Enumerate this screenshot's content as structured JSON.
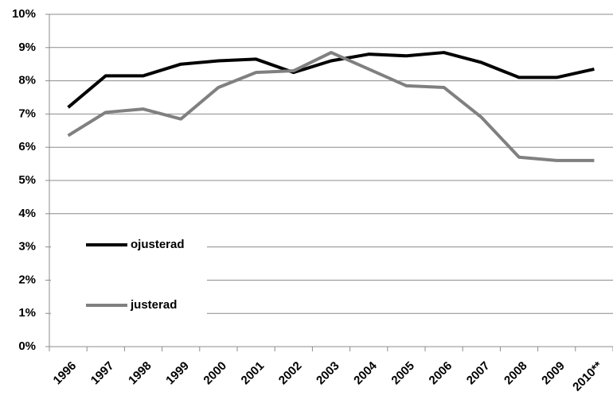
{
  "chart_data": {
    "type": "line",
    "categories": [
      "1996",
      "1997",
      "1998",
      "1999",
      "2000",
      "2001",
      "2002",
      "2003",
      "2004",
      "2005",
      "2006",
      "2007",
      "2008",
      "2009",
      "2010**"
    ],
    "series": [
      {
        "name": "ojusterad",
        "color": "#000000",
        "values": [
          7.2,
          8.15,
          8.15,
          8.5,
          8.6,
          8.65,
          8.25,
          8.6,
          8.8,
          8.75,
          8.85,
          8.55,
          8.1,
          8.1,
          8.35
        ]
      },
      {
        "name": "justerad",
        "color": "#808080",
        "values": [
          6.35,
          7.05,
          7.15,
          6.85,
          7.8,
          8.25,
          8.3,
          8.85,
          8.35,
          7.85,
          7.8,
          6.9,
          5.7,
          5.6,
          5.6
        ]
      }
    ],
    "ylim": [
      0,
      10
    ],
    "yticks": [
      {
        "value": 0,
        "label": "0%"
      },
      {
        "value": 1,
        "label": "1%"
      },
      {
        "value": 2,
        "label": "2%"
      },
      {
        "value": 3,
        "label": "3%"
      },
      {
        "value": 4,
        "label": "4%"
      },
      {
        "value": 5,
        "label": "5%"
      },
      {
        "value": 6,
        "label": "6%"
      },
      {
        "value": 7,
        "label": "7%"
      },
      {
        "value": 8,
        "label": "8%"
      },
      {
        "value": 9,
        "label": "9%"
      },
      {
        "value": 10,
        "label": "10%"
      }
    ],
    "grid": true
  }
}
